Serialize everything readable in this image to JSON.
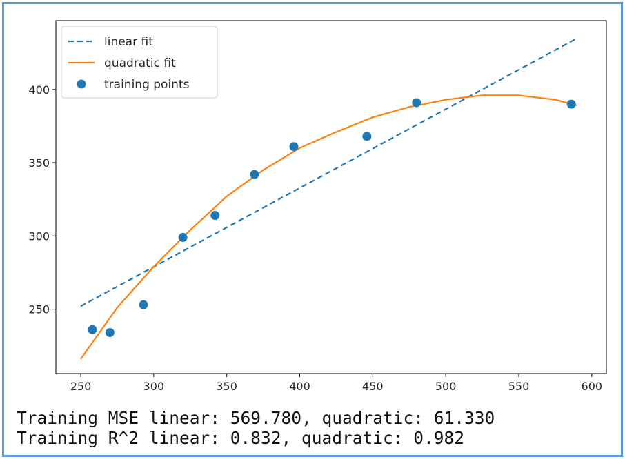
{
  "chart_data": {
    "type": "scatter",
    "title": "",
    "xlabel": "",
    "ylabel": "",
    "xlim": [
      233,
      610
    ],
    "ylim": [
      206,
      447
    ],
    "xticks": [
      250,
      300,
      350,
      400,
      450,
      500,
      550,
      600
    ],
    "yticks": [
      250,
      300,
      350,
      400
    ],
    "grid": false,
    "legend_position": "top-left",
    "series": [
      {
        "name": "linear fit",
        "kind": "line",
        "style": "dashed",
        "color": "#1f77b4",
        "x": [
          250,
          590
        ],
        "y": [
          252,
          435
        ]
      },
      {
        "name": "quadratic fit",
        "kind": "line",
        "style": "solid",
        "color": "#ff7f0e",
        "x": [
          250,
          275,
          300,
          325,
          350,
          375,
          400,
          425,
          450,
          475,
          500,
          525,
          550,
          575,
          590
        ],
        "y": [
          216,
          251,
          279,
          304,
          327,
          345,
          360,
          371,
          381,
          388,
          393,
          396,
          396,
          393,
          389
        ]
      },
      {
        "name": "training points",
        "kind": "scatter",
        "color": "#1f77b4",
        "x": [
          258,
          270,
          293,
          320,
          342,
          369,
          396,
          446,
          480,
          586
        ],
        "y": [
          236,
          234,
          253,
          299,
          314,
          342,
          361,
          368,
          391,
          390
        ]
      }
    ]
  },
  "output": {
    "line1": "Training MSE linear: 569.780, quadratic: 61.330",
    "line2": "Training R^2 linear: 0.832, quadratic: 0.982"
  }
}
